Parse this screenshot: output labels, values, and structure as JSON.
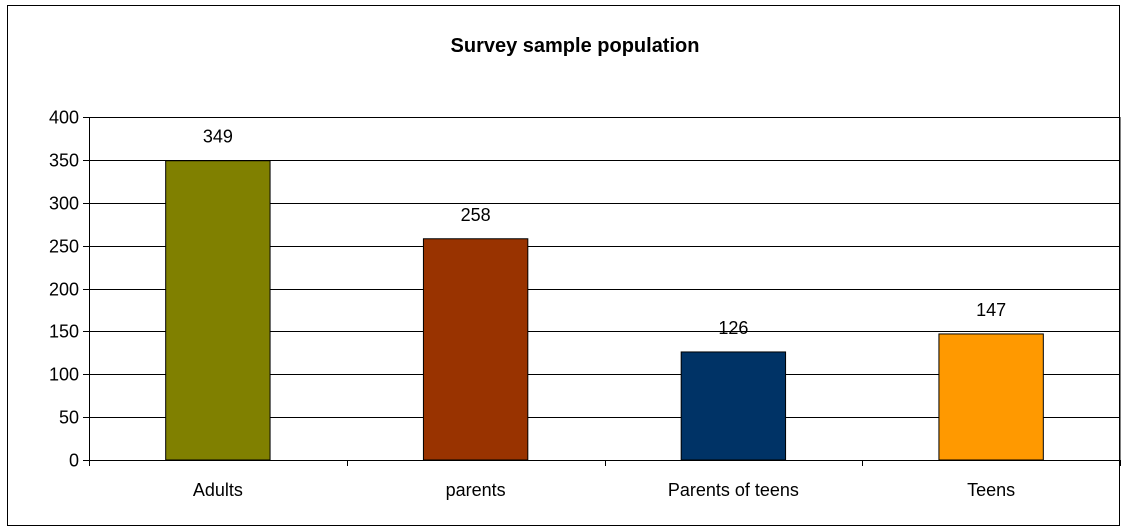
{
  "chart_data": {
    "type": "bar",
    "title": "Survey sample population",
    "categories": [
      "Adults",
      "parents",
      "Parents of teens",
      "Teens"
    ],
    "values": [
      349,
      258,
      126,
      147
    ],
    "data_labels": [
      "349",
      "258",
      "126",
      "147"
    ],
    "colors": [
      "#808000",
      "#993300",
      "#003366",
      "#FF9900"
    ],
    "ylim": [
      0,
      400
    ],
    "yticks": [
      0,
      50,
      100,
      150,
      200,
      250,
      300,
      350,
      400
    ],
    "grid": true,
    "legend": "none"
  }
}
